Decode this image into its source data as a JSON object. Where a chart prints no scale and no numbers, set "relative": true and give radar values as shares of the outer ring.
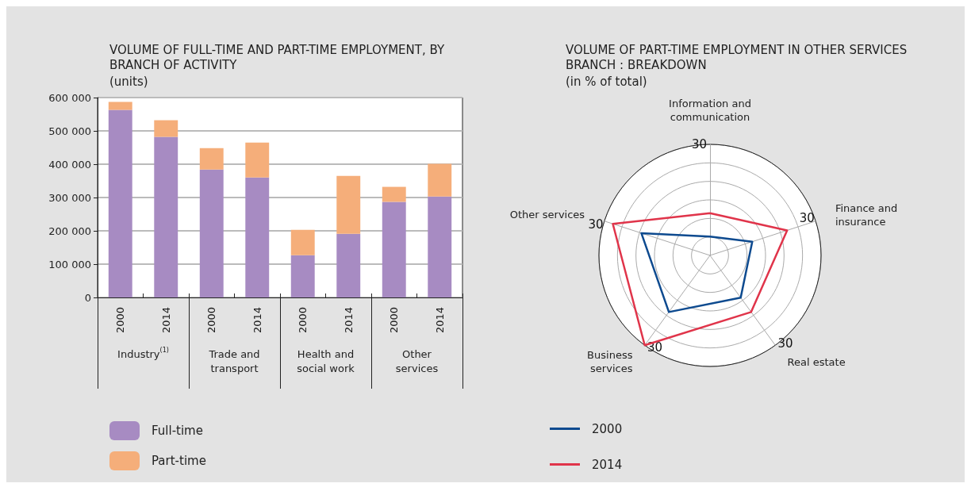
{
  "chart_data": [
    {
      "type": "bar",
      "title": "VOLUME OF FULL-TIME AND PART-TIME EMPLOYMENT, BY BRANCH OF ACTIVITY",
      "subtitle": "(units)",
      "categories": [
        "2000",
        "2014",
        "2000",
        "2014",
        "2000",
        "2014",
        "2000",
        "2014"
      ],
      "annotations": [
        "Industry$^{(1)}$",
        "Trade and transport",
        "Health and social work",
        "Other services"
      ],
      "stacked": true,
      "series": [
        {
          "name": "Full-time",
          "color": "#a78bc2",
          "values": [
            563000,
            482000,
            384000,
            360000,
            127000,
            191000,
            287000,
            303000
          ]
        },
        {
          "name": "Part-time",
          "color": "#f5ae7a",
          "values": [
            24000,
            50000,
            64000,
            105000,
            76000,
            174000,
            45000,
            98000
          ]
        }
      ],
      "ylim": [
        0,
        600000
      ],
      "yticks": [
        {
          "value": 0,
          "label": "0"
        },
        {
          "value": 100000,
          "label": "100 000"
        },
        {
          "value": 200000,
          "label": "200 000"
        },
        {
          "value": 300000,
          "label": "300 000"
        },
        {
          "value": 400000,
          "label": "400 000"
        },
        {
          "value": 500000,
          "label": "500 000"
        },
        {
          "value": 600000,
          "label": "600 000"
        }
      ],
      "grid": "y",
      "legend": "bottom left"
    },
    {
      "type": "radar",
      "title": "VOLUME OF PART-TIME EMPLOYMENT IN OTHER SERVICES BRANCH : BREAKDOWN",
      "subtitle": "(in % of total)",
      "categories": [
        "Information and communication",
        "Finance and insurance",
        "Real estate",
        "Business services",
        "Other services"
      ],
      "series": [
        {
          "name": "2000",
          "color": "#0d4a8f",
          "values": [
            0.17,
            0.4,
            0.47,
            0.63,
            0.65
          ]
        },
        {
          "name": "2014",
          "color": "#e0344a",
          "values": [
            0.38,
            0.73,
            0.63,
            1,
            0.92
          ]
        }
      ],
      "relative": true,
      "annotations": [
        "30"
      ],
      "marker": "none",
      "legend": "bottom"
    }
  ]
}
